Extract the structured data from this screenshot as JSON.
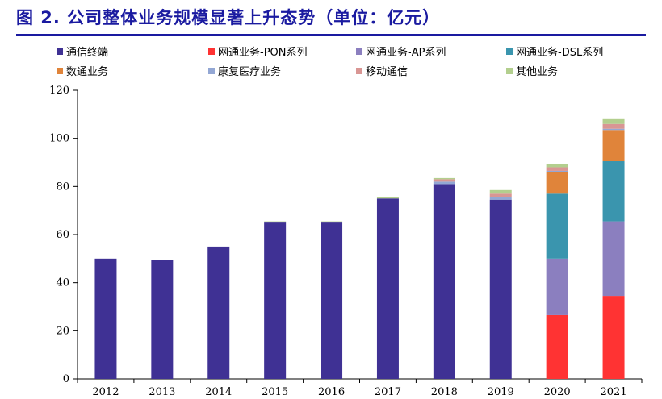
{
  "figure": {
    "title": "图 2. 公司整体业务规模显著上升态势（单位：亿元）"
  },
  "chart_data": {
    "type": "bar",
    "stacked": true,
    "title": "",
    "xlabel": "",
    "ylabel": "",
    "ylim": [
      0,
      120
    ],
    "yticks": [
      0,
      20,
      40,
      60,
      80,
      100,
      120
    ],
    "grid": false,
    "legend_position": "top",
    "categories": [
      "2012",
      "2013",
      "2014",
      "2015",
      "2016",
      "2017",
      "2018",
      "2019",
      "2020",
      "2021"
    ],
    "series": [
      {
        "name": "通信终端",
        "color": "#3f3194",
        "values": [
          50,
          49.5,
          55,
          65,
          65,
          75,
          81,
          74.5,
          0,
          0
        ]
      },
      {
        "name": "网通业务-PON系列",
        "color": "#ff3333",
        "values": [
          0,
          0,
          0,
          0,
          0,
          0,
          0,
          0,
          26.5,
          34.5
        ]
      },
      {
        "name": "网通业务-AP系列",
        "color": "#8b7fbf",
        "values": [
          0,
          0,
          0,
          0,
          0,
          0,
          0,
          0,
          23.5,
          31
        ]
      },
      {
        "name": "网通业务-DSL系列",
        "color": "#3a95ae",
        "values": [
          0,
          0,
          0,
          0,
          0,
          0,
          0,
          0,
          27,
          25
        ]
      },
      {
        "name": "数通业务",
        "color": "#e0843a",
        "values": [
          0,
          0,
          0,
          0,
          0,
          0,
          0,
          0,
          9,
          13
        ]
      },
      {
        "name": "康复医疗业务",
        "color": "#93a7d4",
        "values": [
          0,
          0,
          0,
          0,
          0,
          0,
          1,
          1,
          0.5,
          0.5
        ]
      },
      {
        "name": "移动通信",
        "color": "#d99694",
        "values": [
          0,
          0,
          0,
          0,
          0,
          0,
          1,
          1.5,
          1.5,
          2
        ]
      },
      {
        "name": "其他业务",
        "color": "#b3cf8e",
        "values": [
          0,
          0,
          0,
          0.5,
          0.5,
          0.5,
          0.5,
          1.5,
          1.5,
          2
        ]
      }
    ]
  }
}
